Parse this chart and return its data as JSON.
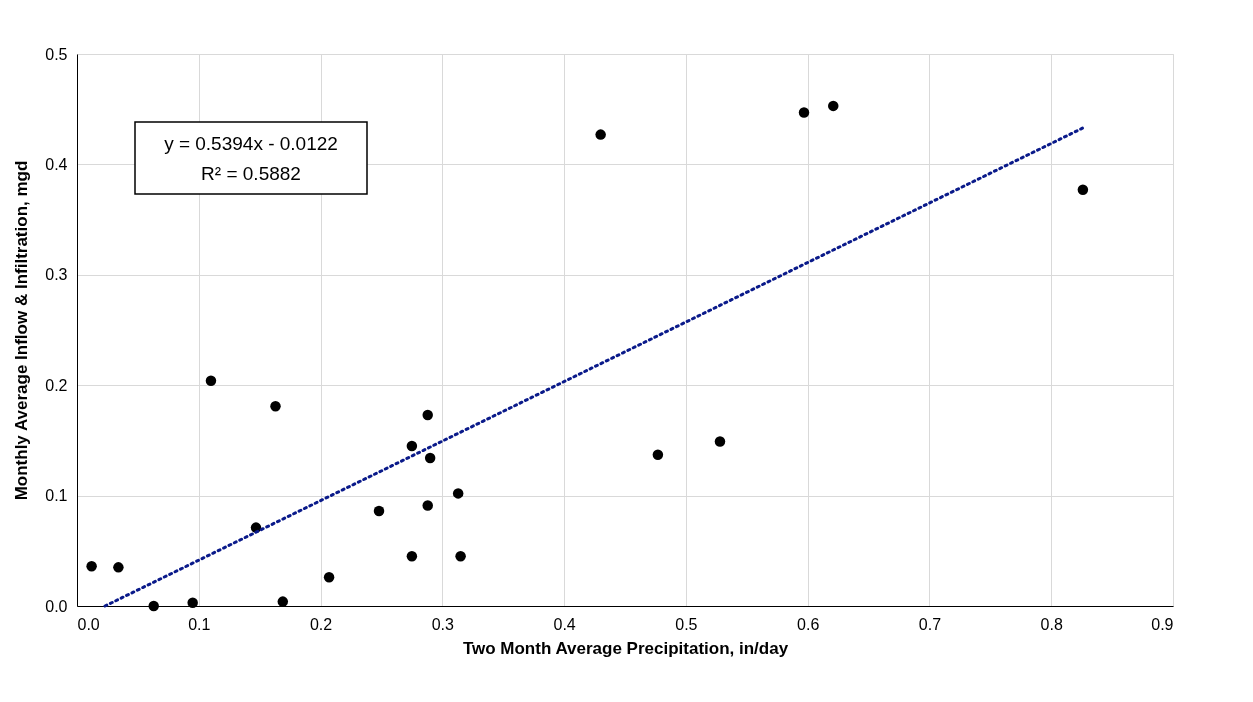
{
  "chart_data": {
    "type": "scatter",
    "xlabel": "Two Month Average Precipitation, in/day",
    "ylabel": "Monthly Average Inflow & Infiltration, mgd",
    "xlim": [
      0,
      0.9
    ],
    "xticks": [
      {
        "value": 0,
        "label": "0.0"
      },
      0.1,
      0.2,
      0.3,
      0.4,
      0.5,
      0.6,
      0.7,
      0.8,
      0.9
    ],
    "ylim": [
      0,
      0.5
    ],
    "yticks": [
      {
        "value": 0,
        "label": "0.0"
      },
      0.1,
      0.2,
      0.3,
      0.4,
      0.5
    ],
    "grid": true,
    "annotations": [
      "y = 0.5394x - 0.0122",
      "R² = 0.5882"
    ],
    "series": [
      {
        "color": "#000000",
        "marker": "circle",
        "x": [
          0.012,
          0.034,
          0.063,
          0.095,
          0.11,
          0.163,
          0.147,
          0.169,
          0.207,
          0.248,
          0.275,
          0.288,
          0.29,
          0.288,
          0.313,
          0.275,
          0.315,
          0.477,
          0.528,
          0.43,
          0.597,
          0.621,
          0.826
        ],
        "values": [
          0.036,
          0.035,
          0.0,
          0.003,
          0.204,
          0.181,
          0.071,
          0.004,
          0.026,
          0.086,
          0.145,
          0.173,
          0.134,
          0.091,
          0.102,
          0.045,
          0.045,
          0.137,
          0.149,
          0.427,
          0.447,
          0.453,
          0.377
        ]
      },
      {
        "type": "line",
        "color": "#0a1a8a",
        "line_style": "dotted",
        "marker": "none",
        "x": [
          0.023,
          0.826
        ],
        "values": [
          0.0,
          0.433
        ]
      }
    ]
  }
}
